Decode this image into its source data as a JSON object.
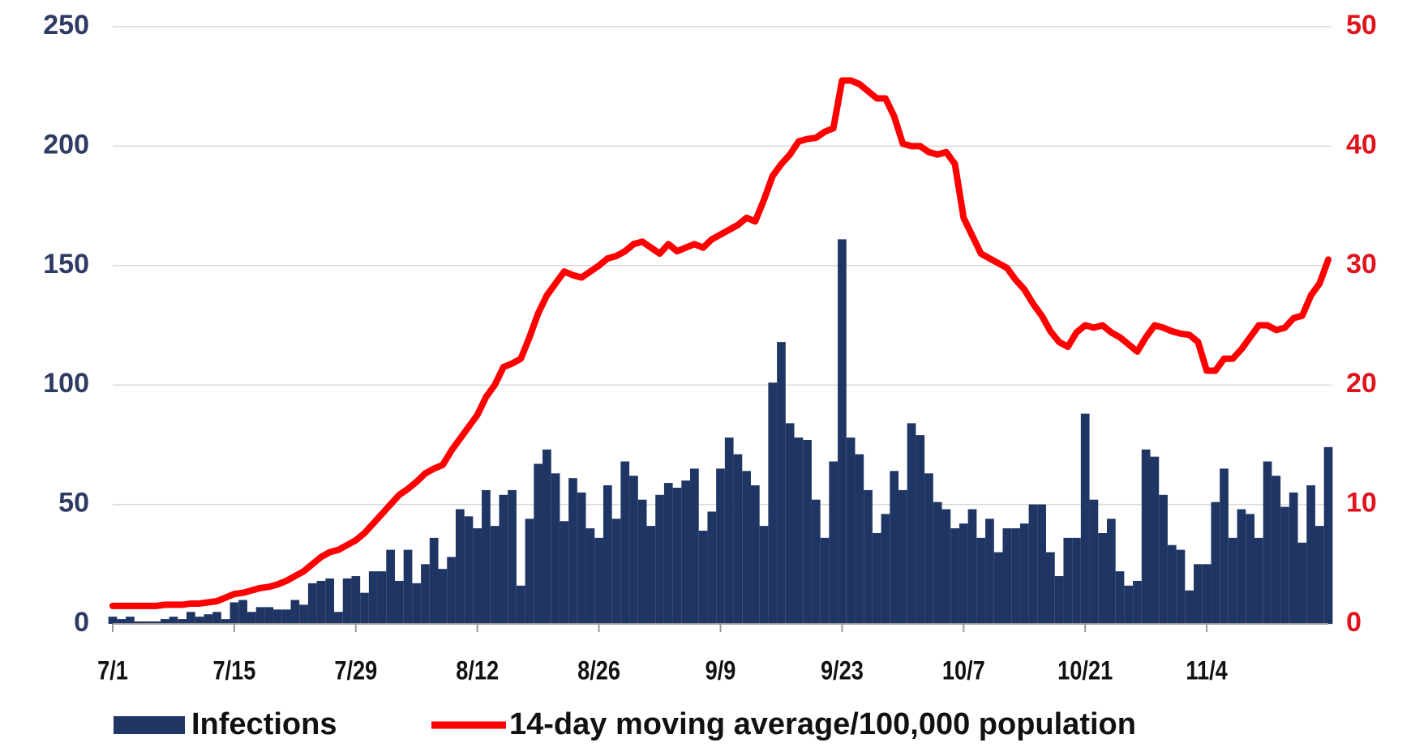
{
  "chart_data": {
    "type": "bar",
    "categories": [
      "7/1",
      null,
      null,
      null,
      null,
      null,
      null,
      null,
      null,
      null,
      null,
      null,
      null,
      null,
      "7/15",
      null,
      null,
      null,
      null,
      null,
      null,
      null,
      null,
      null,
      null,
      null,
      null,
      null,
      "7/29",
      null,
      null,
      null,
      null,
      null,
      null,
      null,
      null,
      null,
      null,
      null,
      null,
      null,
      "8/12",
      null,
      null,
      null,
      null,
      null,
      null,
      null,
      null,
      null,
      null,
      null,
      null,
      null,
      "8/26",
      null,
      null,
      null,
      null,
      null,
      null,
      null,
      null,
      null,
      null,
      null,
      null,
      null,
      "9/9",
      null,
      null,
      null,
      null,
      null,
      null,
      null,
      null,
      null,
      null,
      null,
      null,
      null,
      "9/23",
      null,
      null,
      null,
      null,
      null,
      null,
      null,
      null,
      null,
      null,
      null,
      null,
      null,
      "10/7",
      null,
      null,
      null,
      null,
      null,
      null,
      null,
      null,
      null,
      null,
      null,
      null,
      null,
      "10/21",
      null,
      null,
      null,
      null,
      null,
      null,
      null,
      null,
      null,
      null,
      null,
      null,
      null,
      "11/4",
      null,
      null,
      null,
      null,
      null,
      null,
      null,
      null,
      null,
      null,
      null,
      null,
      null,
      null
    ],
    "series": [
      {
        "name": "Infections",
        "color": "#1f3564",
        "type": "bar",
        "values": [
          3,
          2,
          3,
          1,
          1,
          1,
          2,
          3,
          2,
          5,
          3,
          4,
          5,
          2,
          9,
          10,
          5,
          7,
          7,
          6,
          6,
          10,
          8,
          17,
          18,
          19,
          5,
          19,
          20,
          13,
          22,
          22,
          31,
          18,
          31,
          17,
          25,
          36,
          23,
          28,
          48,
          45,
          40,
          56,
          41,
          54,
          56,
          16,
          44,
          67,
          73,
          63,
          43,
          61,
          55,
          40,
          36,
          58,
          44,
          68,
          62,
          52,
          41,
          54,
          59,
          57,
          60,
          65,
          39,
          47,
          65,
          78,
          71,
          64,
          58,
          41,
          101,
          118,
          84,
          78,
          77,
          52,
          36,
          68,
          161,
          78,
          71,
          56,
          38,
          46,
          64,
          56,
          84,
          79,
          63,
          51,
          48,
          40,
          42,
          48,
          36,
          44,
          30,
          40,
          40,
          42,
          50,
          50,
          30,
          20,
          36,
          36,
          88,
          52,
          38,
          44,
          22,
          16,
          18,
          73,
          70,
          54,
          33,
          31,
          14,
          25,
          25,
          51,
          65,
          36,
          48,
          46,
          36,
          68,
          62,
          49,
          55,
          34,
          58,
          41,
          74
        ]
      },
      {
        "name": "14-day moving average/100,000 population",
        "color": "#ff0000",
        "type": "line",
        "axis": "y2",
        "values": [
          1.5,
          1.5,
          1.5,
          1.5,
          1.5,
          1.5,
          1.6,
          1.6,
          1.6,
          1.7,
          1.7,
          1.8,
          1.9,
          2.2,
          2.5,
          2.6,
          2.8,
          3.0,
          3.1,
          3.3,
          3.6,
          4.0,
          4.4,
          5.0,
          5.6,
          6.0,
          6.2,
          6.6,
          7.0,
          7.6,
          8.4,
          9.2,
          10.0,
          10.8,
          11.3,
          11.9,
          12.6,
          13.0,
          13.3,
          14.5,
          15.5,
          16.5,
          17.5,
          19,
          20,
          21.5,
          21.8,
          22.2,
          24,
          26,
          27.5,
          28.5,
          29.5,
          29.2,
          29,
          29.5,
          30,
          30.6,
          30.8,
          31.2,
          31.8,
          32,
          31.5,
          31,
          31.8,
          31.2,
          31.5,
          31.8,
          31.5,
          32.2,
          32.6,
          33,
          33.4,
          34,
          33.7,
          35.5,
          37.5,
          38.5,
          39.3,
          40.4,
          40.6,
          40.7,
          41.2,
          41.5,
          45.5,
          45.5,
          45.2,
          44.6,
          44,
          44,
          42.5,
          40.2,
          40,
          40,
          39.5,
          39.3,
          39.5,
          38.5,
          34,
          32.5,
          31,
          30.6,
          30.2,
          29.8,
          28.8,
          28,
          26.8,
          25.8,
          24.5,
          23.6,
          23.2,
          24.4,
          25,
          24.8,
          25,
          24.4,
          24,
          23.4,
          22.8,
          24,
          25,
          24.8,
          24.5,
          24.3,
          24.2,
          23.6,
          21.2,
          21.2,
          22.2,
          22.2,
          23,
          24,
          25,
          25,
          24.6,
          24.8,
          25.6,
          25.8,
          27.5,
          28.5,
          30.5
        ]
      }
    ],
    "ylim": [
      0,
      250
    ],
    "yticks": [
      0,
      50,
      100,
      150,
      200,
      250
    ],
    "y2lim": [
      0,
      50
    ],
    "y2ticks": [
      0,
      10,
      20,
      30,
      40,
      50
    ],
    "grid": true,
    "legend": "bottom"
  }
}
